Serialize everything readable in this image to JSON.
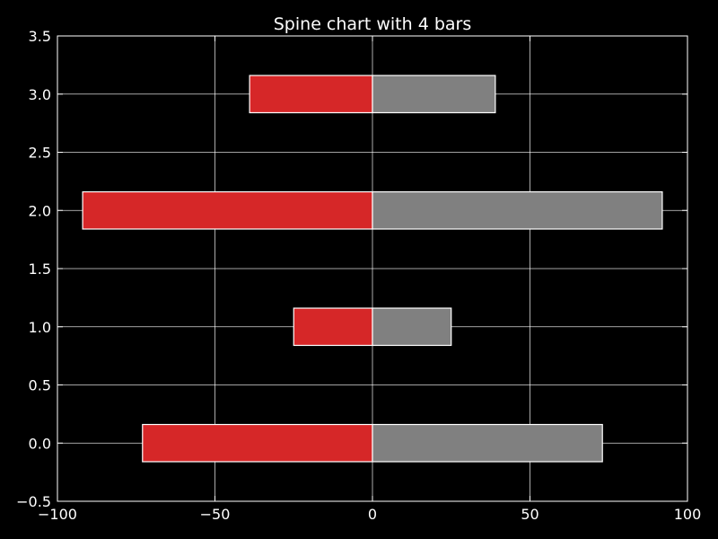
{
  "chart_data": {
    "type": "bar",
    "orientation": "horizontal",
    "title": "Spine chart with 4 bars",
    "xlabel": "",
    "ylabel": "",
    "xlim": [
      -100,
      100
    ],
    "ylim": [
      -0.5,
      3.5
    ],
    "xticks": [
      -100,
      -50,
      0,
      50,
      100
    ],
    "xtick_labels": [
      "−100",
      "−50",
      "0",
      "50",
      "100"
    ],
    "yticks": [
      -0.5,
      0.0,
      0.5,
      1.0,
      1.5,
      2.0,
      2.5,
      3.0,
      3.5
    ],
    "ytick_labels": [
      "−0.5",
      "0.0",
      "0.5",
      "1.0",
      "1.5",
      "2.0",
      "2.5",
      "3.0",
      "3.5"
    ],
    "grid": true,
    "bar_height": 0.32,
    "y": [
      0,
      1,
      2,
      3
    ],
    "series": [
      {
        "values": [
          -73,
          -25,
          -92,
          -39
        ],
        "color": "#d62728"
      },
      {
        "values": [
          73,
          25,
          92,
          39
        ],
        "color": "#808080"
      }
    ],
    "background": "#000000",
    "foreground": "#ffffff"
  }
}
